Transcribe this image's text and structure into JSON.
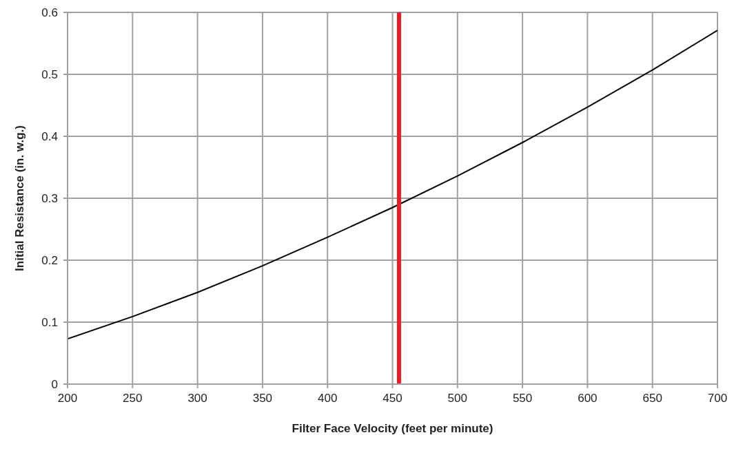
{
  "chart_data": {
    "type": "line",
    "xlabel": "Filter Face Velocity (feet per minute)",
    "ylabel": "Initial Resistance (in. w.g.)",
    "x": [
      200,
      250,
      300,
      350,
      400,
      450,
      500,
      550,
      600,
      650,
      700
    ],
    "series": [
      {
        "color": "#000000",
        "values": [
          0.073,
          0.109,
          0.148,
          0.191,
          0.237,
          0.285,
          0.336,
          0.39,
          0.447,
          0.507,
          0.571
        ]
      }
    ],
    "xlim": [
      200,
      700
    ],
    "xticks": [
      200,
      250,
      300,
      350,
      400,
      450,
      500,
      550,
      600,
      650,
      700
    ],
    "ylim": [
      0,
      0.6
    ],
    "yticks": [
      0,
      0.1,
      0.2,
      0.3,
      0.4,
      0.5,
      0.6
    ],
    "grid": true,
    "marker": "none",
    "line_style": "solid",
    "ref_lines": [
      {
        "axis": "x",
        "value": 455,
        "color": "#ed1c24"
      }
    ]
  }
}
